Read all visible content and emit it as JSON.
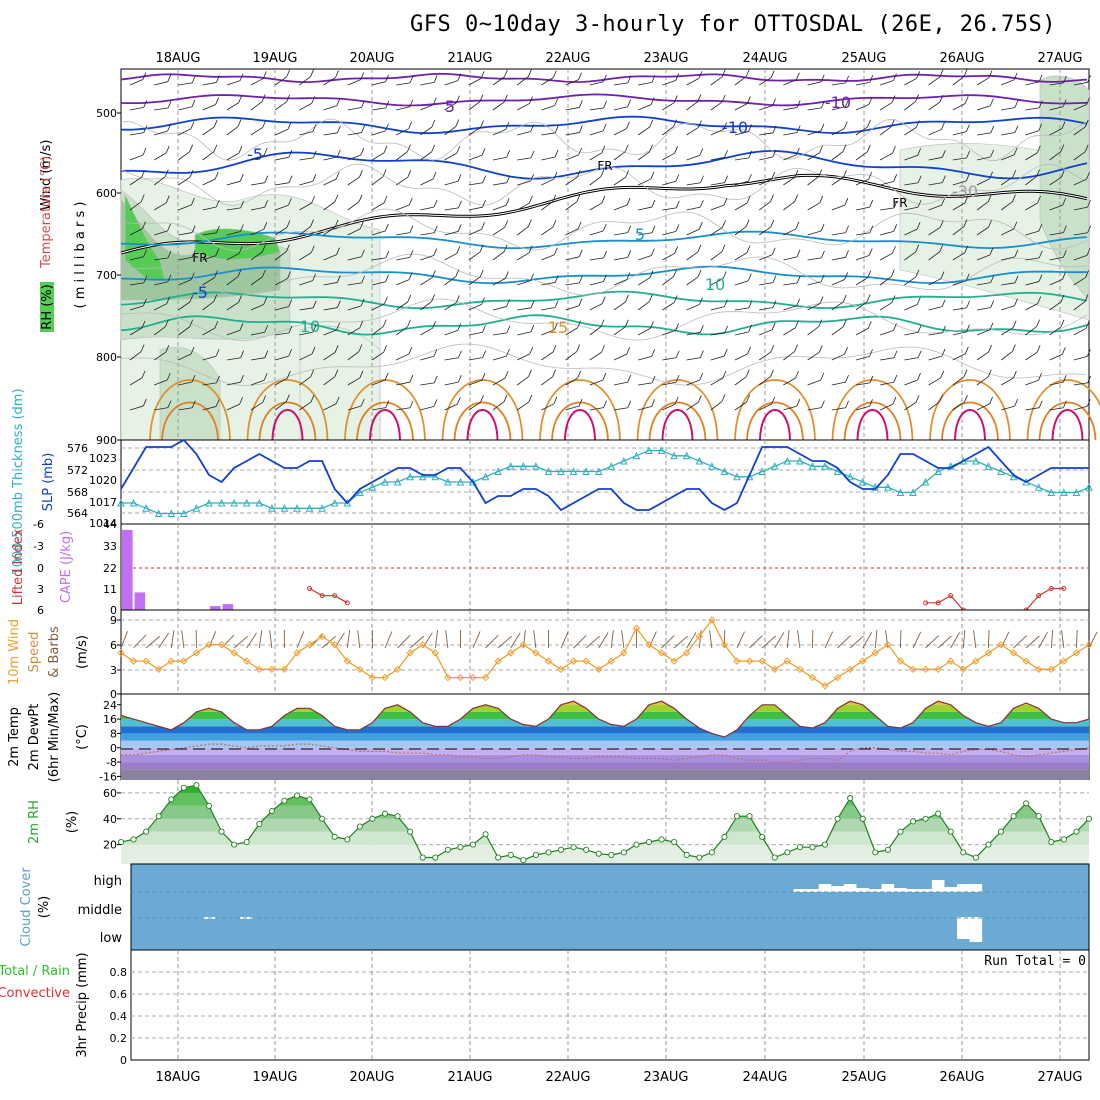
{
  "title": "GFS 0~10day 3-hourly for OTTOSDAL (26E, 26.75S)",
  "dates": [
    "18AUG",
    "19AUG",
    "20AUG",
    "21AUG",
    "22AUG",
    "23AUG",
    "24AUG",
    "25AUG",
    "26AUG",
    "27AUG"
  ],
  "panels": {
    "upper": {
      "ylabel_wind": "Wind (m/s)",
      "ylabel_temp": "Temperature (°C)",
      "ylabel_rh": "RH (%)",
      "ylabel_mb": "( m i l l i b a r s )",
      "ticks": [
        "500",
        "600",
        "700",
        "800",
        "900"
      ],
      "contour_labels": [
        "-10",
        "-10",
        "-5",
        "5",
        "FR",
        "FR",
        "FR",
        "-5",
        "5",
        "10",
        "10",
        "15",
        "-30"
      ]
    },
    "pressure": {
      "ylabel_left": "1000-500mb Thickness (dm)",
      "ylabel_right": "SLP (mb)",
      "ticks_left": [
        "576",
        "572",
        "568",
        "564"
      ],
      "ticks_right": [
        "1023",
        "1020",
        "1017",
        "1014"
      ]
    },
    "cape": {
      "ylabel_left": "Lifted Index",
      "ylabel_right": "CAPE (J/kg)",
      "ticks_left": [
        "-6",
        "-3",
        "0",
        "3",
        "6"
      ],
      "ticks_right": [
        "44",
        "33",
        "22",
        "11",
        "0"
      ]
    },
    "wind10m": {
      "ylabel_a": "10m Wind",
      "ylabel_b": "Speed",
      "ylabel_c": "& Barbs",
      "ylabel_unit": "(m/s)",
      "ticks": [
        "9",
        "6",
        "3",
        "0"
      ]
    },
    "temp2m": {
      "ylabel_a": "2m Temp",
      "ylabel_b": "2m DewPt",
      "ylabel_c": "(6hr Min/Max)",
      "ylabel_unit": "(°C)",
      "ticks": [
        "24",
        "16",
        "8",
        "0",
        "-8",
        "-16"
      ]
    },
    "rh2m": {
      "ylabel": "2m RH",
      "ylabel_unit": "(%)",
      "ticks": [
        "60",
        "40",
        "20"
      ]
    },
    "cloud": {
      "ylabel": "Cloud Cover",
      "ylabel_unit": "(%)",
      "ticks": [
        "high",
        "middle",
        "low"
      ]
    },
    "precip": {
      "ylabel_a": "Total / Rain",
      "ylabel_b": "Convective",
      "ylabel_c": "3hr Precip (mm)",
      "ticks": [
        "0.8",
        "0.6",
        "0.4",
        "0.2",
        "0"
      ],
      "run_total": "Run Total = 0"
    }
  },
  "colors": {
    "rh_green": "#55cc55",
    "slp": "#1040d0",
    "thick": "#30b0c0",
    "li": "#d03030",
    "cape": "#c070f0",
    "wind": "#f0a030",
    "rh2m": "#30a030",
    "cloud": "#6aaad4"
  },
  "chart_data": [
    {
      "type": "line",
      "name_key": "thickness",
      "y_range": [
        562,
        578
      ],
      "x": [
        0,
        1,
        2,
        3,
        4,
        5,
        6,
        7,
        8,
        9,
        10,
        11,
        12,
        13,
        14,
        15,
        16,
        17,
        18,
        19,
        20,
        21,
        22,
        23,
        24,
        25,
        26,
        27,
        28,
        29,
        30,
        31,
        32,
        33,
        34,
        35,
        36,
        37,
        38,
        39,
        40,
        41,
        42,
        43,
        44,
        45,
        46,
        47,
        48,
        49,
        50,
        51,
        52,
        53,
        54,
        55,
        56,
        57,
        58,
        59,
        60,
        61,
        62,
        63,
        64,
        65,
        66,
        67,
        68,
        69,
        70,
        71,
        72,
        73,
        74,
        75,
        76,
        77
      ],
      "values": [
        566,
        566,
        565,
        564,
        564,
        564,
        565,
        566,
        566,
        566,
        566,
        566,
        565,
        565,
        565,
        565,
        565,
        566,
        566,
        568,
        569,
        570,
        570,
        571,
        571,
        571,
        570,
        570,
        570,
        571,
        572,
        573,
        573,
        573,
        572,
        572,
        572,
        572,
        572,
        573,
        574,
        575,
        576,
        576,
        575,
        575,
        574,
        573,
        572,
        571,
        571,
        572,
        573,
        574,
        574,
        573,
        573,
        572,
        571,
        570,
        569,
        569,
        568,
        568,
        570,
        572,
        573,
        574,
        574,
        573,
        572,
        571,
        570,
        569,
        568,
        568,
        568,
        569
      ]
    },
    {
      "type": "line",
      "name_key": "slp",
      "y_range": [
        1013,
        1025
      ],
      "x": [
        0,
        1,
        2,
        3,
        4,
        5,
        6,
        7,
        8,
        9,
        10,
        11,
        12,
        13,
        14,
        15,
        16,
        17,
        18,
        19,
        20,
        21,
        22,
        23,
        24,
        25,
        26,
        27,
        28,
        29,
        30,
        31,
        32,
        33,
        34,
        35,
        36,
        37,
        38,
        39,
        40,
        41,
        42,
        43,
        44,
        45,
        46,
        47,
        48,
        49,
        50,
        51,
        52,
        53,
        54,
        55,
        56,
        57,
        58,
        59,
        60,
        61,
        62,
        63,
        64,
        65,
        66,
        67,
        68,
        69,
        70,
        71,
        72,
        73,
        74,
        75,
        76,
        77
      ],
      "values": [
        1018,
        1021,
        1024,
        1024,
        1024,
        1025,
        1023,
        1020,
        1019,
        1021,
        1022,
        1023,
        1022,
        1021,
        1021,
        1022,
        1022,
        1018,
        1016,
        1018,
        1019,
        1020,
        1021,
        1021,
        1020,
        1020,
        1021,
        1021,
        1019,
        1016,
        1017,
        1017,
        1018,
        1018,
        1017,
        1015,
        1016,
        1017,
        1018,
        1018,
        1016,
        1015,
        1015,
        1016,
        1017,
        1018,
        1018,
        1016,
        1015,
        1016,
        1020,
        1024,
        1024,
        1024,
        1023,
        1022,
        1022,
        1021,
        1019,
        1018,
        1018,
        1020,
        1023,
        1023,
        1022,
        1021,
        1021,
        1022,
        1023,
        1024,
        1022,
        1020,
        1019,
        1020,
        1021,
        1021,
        1021,
        1021
      ]
    },
    {
      "type": "bar",
      "name_key": "cape",
      "y_range": [
        0,
        44
      ],
      "x": [
        0,
        1,
        7,
        8
      ],
      "values": [
        41,
        9,
        2,
        3
      ]
    },
    {
      "type": "line",
      "name_key": "lifted_index",
      "y_range": [
        -6,
        6
      ],
      "segments": [
        {
          "x": [
            15,
            16,
            17,
            18
          ],
          "values": [
            3,
            4,
            4,
            5
          ]
        },
        {
          "x": [
            64,
            65,
            66,
            67
          ],
          "values": [
            5,
            5,
            4,
            6
          ]
        },
        {
          "x": [
            72,
            73,
            74,
            75
          ],
          "values": [
            6,
            4,
            3,
            3
          ]
        }
      ]
    },
    {
      "type": "line",
      "name_key": "wind10m",
      "y_range": [
        0,
        9
      ],
      "x": [
        0,
        1,
        2,
        3,
        4,
        5,
        6,
        7,
        8,
        9,
        10,
        11,
        12,
        13,
        14,
        15,
        16,
        17,
        18,
        19,
        20,
        21,
        22,
        23,
        24,
        25,
        26,
        27,
        28,
        29,
        30,
        31,
        32,
        33,
        34,
        35,
        36,
        37,
        38,
        39,
        40,
        41,
        42,
        43,
        44,
        45,
        46,
        47,
        48,
        49,
        50,
        51,
        52,
        53,
        54,
        55,
        56,
        57,
        58,
        59,
        60,
        61,
        62,
        63,
        64,
        65,
        66,
        67,
        68,
        69,
        70,
        71,
        72,
        73,
        74,
        75,
        76,
        77
      ],
      "values": [
        5,
        4,
        4,
        3,
        4,
        4,
        5,
        6,
        6,
        5,
        4,
        3,
        3,
        3,
        5,
        6,
        7,
        6,
        4,
        3,
        2,
        2,
        3,
        5,
        6,
        5,
        2,
        2,
        2,
        2,
        4,
        5,
        6,
        5,
        4,
        3,
        4,
        4,
        3,
        4,
        5,
        8,
        6,
        5,
        4,
        5,
        7,
        9,
        6,
        4,
        4,
        4,
        3,
        4,
        3,
        2,
        1,
        2,
        3,
        4,
        5,
        6,
        4,
        3,
        3,
        3,
        4,
        3,
        4,
        5,
        6,
        5,
        4,
        3,
        3,
        4,
        5,
        6
      ]
    },
    {
      "type": "area",
      "name_key": "temp2m",
      "y_range": [
        -18,
        30
      ],
      "x": [
        0,
        1,
        2,
        3,
        4,
        5,
        6,
        7,
        8,
        9,
        10,
        11,
        12,
        13,
        14,
        15,
        16,
        17,
        18,
        19,
        20,
        21,
        22,
        23,
        24,
        25,
        26,
        27,
        28,
        29,
        30,
        31,
        32,
        33,
        34,
        35,
        36,
        37,
        38,
        39,
        40,
        41,
        42,
        43,
        44,
        45,
        46,
        47,
        48,
        49,
        50,
        51,
        52,
        53,
        54,
        55,
        56,
        57,
        58,
        59,
        60,
        61,
        62,
        63,
        64,
        65,
        66,
        67,
        68,
        69,
        70,
        71,
        72,
        73,
        74,
        75,
        76,
        77
      ],
      "values": [
        18,
        16,
        14,
        12,
        10,
        14,
        20,
        22,
        20,
        14,
        10,
        10,
        12,
        18,
        22,
        22,
        18,
        12,
        10,
        10,
        14,
        22,
        24,
        20,
        14,
        12,
        12,
        16,
        22,
        24,
        22,
        16,
        13,
        12,
        16,
        24,
        26,
        22,
        16,
        13,
        12,
        16,
        24,
        26,
        22,
        16,
        11,
        8,
        6,
        10,
        18,
        24,
        24,
        18,
        12,
        11,
        14,
        22,
        26,
        24,
        18,
        12,
        11,
        14,
        22,
        26,
        24,
        18,
        14,
        12,
        14,
        22,
        25,
        22,
        16,
        14,
        14,
        16
      ],
      "dewpoint": [
        -4,
        -4,
        -3,
        -2,
        -1,
        0,
        1,
        2,
        2,
        1,
        0,
        1,
        1,
        1,
        2,
        2,
        1,
        0,
        -1,
        -2,
        -2,
        -2,
        -3,
        -3,
        -3,
        -4,
        -4,
        -5,
        -5,
        -6,
        -6,
        -5,
        -4,
        -4,
        -5,
        -5,
        -6,
        -6,
        -5,
        -5,
        -5,
        -6,
        -6,
        -6,
        -7,
        -6,
        -5,
        -4,
        -4,
        -6,
        -7,
        -7,
        -8,
        -8,
        -7,
        -6,
        -6,
        -7,
        -2,
        0,
        0,
        -1,
        -2,
        -2,
        -3,
        -3,
        -4,
        -2,
        -1,
        -1,
        -2,
        -4,
        -5,
        -4,
        -3,
        -2,
        -1,
        0
      ]
    },
    {
      "type": "area",
      "name_key": "rh2m",
      "y_range": [
        5,
        70
      ],
      "x": [
        0,
        1,
        2,
        3,
        4,
        5,
        6,
        7,
        8,
        9,
        10,
        11,
        12,
        13,
        14,
        15,
        16,
        17,
        18,
        19,
        20,
        21,
        22,
        23,
        24,
        25,
        26,
        27,
        28,
        29,
        30,
        31,
        32,
        33,
        34,
        35,
        36,
        37,
        38,
        39,
        40,
        41,
        42,
        43,
        44,
        45,
        46,
        47,
        48,
        49,
        50,
        51,
        52,
        53,
        54,
        55,
        56,
        57,
        58,
        59,
        60,
        61,
        62,
        63,
        64,
        65,
        66,
        67,
        68,
        69,
        70,
        71,
        72,
        73,
        74,
        75,
        76,
        77
      ],
      "values": [
        22,
        24,
        30,
        42,
        55,
        64,
        66,
        50,
        30,
        20,
        22,
        36,
        46,
        54,
        58,
        55,
        40,
        26,
        24,
        34,
        40,
        44,
        42,
        30,
        10,
        10,
        16,
        18,
        20,
        28,
        10,
        12,
        8,
        12,
        14,
        16,
        18,
        16,
        13,
        12,
        14,
        20,
        22,
        24,
        22,
        12,
        10,
        14,
        26,
        42,
        42,
        26,
        10,
        14,
        18,
        18,
        20,
        40,
        56,
        40,
        14,
        16,
        30,
        38,
        40,
        44,
        30,
        14,
        10,
        20,
        30,
        42,
        52,
        42,
        22,
        24,
        30,
        40
      ]
    },
    {
      "type": "bar",
      "name_key": "cloud_high",
      "y_range": [
        0,
        100
      ],
      "x": [
        54,
        55,
        56,
        57,
        58,
        59,
        60,
        61,
        62,
        63,
        64,
        65,
        66,
        67,
        68
      ],
      "values": [
        3,
        3,
        8,
        6,
        8,
        4,
        3,
        8,
        4,
        3,
        3,
        12,
        5,
        8,
        8
      ]
    },
    {
      "type": "bar",
      "name_key": "cloud_middle",
      "y_range": [
        0,
        100
      ],
      "x": [
        7,
        10,
        67,
        68
      ],
      "values": [
        2,
        2,
        22,
        25
      ]
    },
    {
      "type": "bar",
      "name_key": "precip",
      "y_range": [
        0,
        0.9
      ],
      "x": [],
      "values": []
    }
  ]
}
